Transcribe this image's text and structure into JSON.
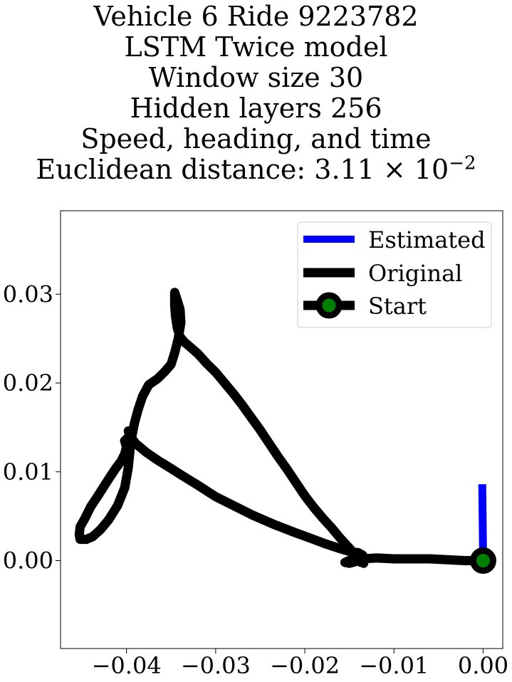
{
  "title": {
    "line1": "Vehicle 6 Ride 9223782",
    "line2": "LSTM Twice model",
    "line3": "Window size 30",
    "line4": "Hidden layers 256",
    "line5": "Speed, heading, and time",
    "line6_prefix": "Euclidean distance: 3.11 × 10",
    "line6_exp": "−2"
  },
  "chart_data": {
    "type": "line",
    "title": "Vehicle 6 Ride 9223782 LSTM Twice model Window size 30 Hidden layers 256 Speed, heading, and time Euclidean distance: 3.11 × 10^−2",
    "xlabel": "",
    "ylabel": "",
    "xlim": [
      -0.0474,
      0.0022
    ],
    "ylim": [
      -0.0099,
      0.0394
    ],
    "grid": false,
    "legend_position": "top-right",
    "xticks": [
      -0.04,
      -0.03,
      -0.02,
      -0.01,
      0.0
    ],
    "xtick_labels": [
      "−0.04",
      "−0.03",
      "−0.02",
      "−0.01",
      "0.00"
    ],
    "yticks": [
      0.0,
      0.01,
      0.02,
      0.03
    ],
    "ytick_labels": [
      "0.00",
      "0.01",
      "0.02",
      "0.03"
    ],
    "series": [
      {
        "name": "Estimated",
        "color": "#0000ff",
        "x": [
          0.0,
          -0.0001
        ],
        "y": [
          0.0,
          0.0086
        ]
      },
      {
        "name": "Original",
        "color": "#000000",
        "x": [
          0.0,
          -0.002,
          -0.004,
          -0.006,
          -0.008,
          -0.01,
          -0.012,
          -0.0135,
          -0.0137,
          -0.0134,
          -0.0139,
          -0.015,
          -0.0155,
          -0.0142,
          -0.0135,
          -0.014,
          -0.0148,
          -0.0156,
          -0.0165,
          -0.0177,
          -0.0193,
          -0.0212,
          -0.0235,
          -0.0258,
          -0.0278,
          -0.03,
          -0.032,
          -0.0338,
          -0.0352,
          -0.0365,
          -0.0378,
          -0.039,
          -0.0397,
          -0.0398,
          -0.0396,
          -0.0402,
          -0.04,
          -0.0402,
          -0.0406,
          -0.0412,
          -0.0418,
          -0.0425,
          -0.0432,
          -0.044,
          -0.0447,
          -0.0452,
          -0.0453,
          -0.0452,
          -0.0445,
          -0.0438,
          -0.0429,
          -0.042,
          -0.041,
          -0.0402,
          -0.0398,
          -0.0395,
          -0.0391,
          -0.0387,
          -0.0382,
          -0.0375,
          -0.0365,
          -0.0357,
          -0.035,
          -0.0346,
          -0.0342,
          -0.0339,
          -0.034,
          -0.0344,
          -0.0346,
          -0.0346,
          -0.0345,
          -0.0343,
          -0.034,
          -0.0335,
          -0.0328,
          -0.032,
          -0.031,
          -0.03,
          -0.029,
          -0.028,
          -0.027,
          -0.026,
          -0.025,
          -0.024,
          -0.023,
          -0.022,
          -0.021,
          -0.02,
          -0.019,
          -0.018,
          -0.017,
          -0.016,
          -0.015,
          -0.0142,
          -0.0137
        ],
        "y": [
          0.0,
          0.0,
          0.0001,
          0.0002,
          0.0002,
          0.0002,
          0.0003,
          0.0002,
          0.0001,
          -0.0003,
          0.0,
          -0.0003,
          -0.0002,
          0.0004,
          0.0006,
          0.0009,
          0.001,
          0.0012,
          0.0015,
          0.0019,
          0.0025,
          0.0032,
          0.0041,
          0.0051,
          0.0061,
          0.0072,
          0.0085,
          0.0096,
          0.0105,
          0.0113,
          0.0122,
          0.0132,
          0.0142,
          0.0146,
          0.0141,
          0.0135,
          0.0128,
          0.012,
          0.0112,
          0.0104,
          0.0095,
          0.0084,
          0.0073,
          0.0061,
          0.0047,
          0.0038,
          0.0029,
          0.0024,
          0.0024,
          0.0027,
          0.0035,
          0.0046,
          0.0062,
          0.0082,
          0.0105,
          0.0135,
          0.0155,
          0.017,
          0.0185,
          0.0198,
          0.0205,
          0.0213,
          0.0221,
          0.0234,
          0.025,
          0.0268,
          0.0283,
          0.0296,
          0.0302,
          0.0288,
          0.0275,
          0.0262,
          0.0252,
          0.0246,
          0.024,
          0.0233,
          0.0222,
          0.0212,
          0.02,
          0.0188,
          0.0175,
          0.0161,
          0.0147,
          0.0132,
          0.0117,
          0.0103,
          0.0088,
          0.0073,
          0.006,
          0.0048,
          0.0037,
          0.0025,
          0.0014,
          0.0005,
          -0.0002
        ]
      },
      {
        "name": "Start",
        "color": "#008000",
        "edgecolor": "#000000",
        "x": [
          0.0
        ],
        "y": [
          0.0
        ]
      }
    ]
  }
}
